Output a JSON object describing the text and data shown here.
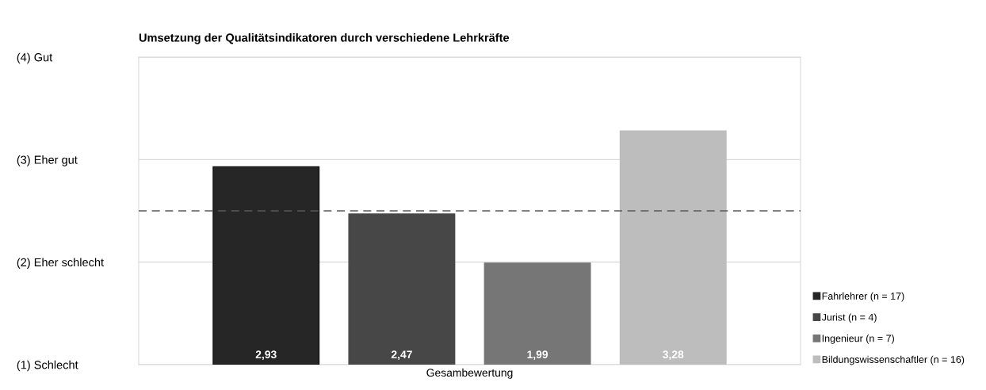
{
  "chart_data": {
    "type": "bar",
    "title": "Umsetzung der Qualitätsindikatoren durch verschiedene Lehrkräfte",
    "categories": [
      "Gesambewertung"
    ],
    "series": [
      {
        "name": "Fahrlehrer (n = 17)",
        "color": "#262626",
        "values": [
          2.93
        ],
        "value_labels": [
          "2,93"
        ]
      },
      {
        "name": "Jurist (n = 4)",
        "color": "#474747",
        "values": [
          2.47
        ],
        "value_labels": [
          "2,47"
        ]
      },
      {
        "name": "Ingenieur (n = 7)",
        "color": "#767676",
        "values": [
          1.99
        ],
        "value_labels": [
          "1,99"
        ]
      },
      {
        "name": "Bildungswissenschaftler (n = 16)",
        "color": "#bdbdbd",
        "values": [
          3.28
        ],
        "value_labels": [
          "3,28"
        ]
      }
    ],
    "ylim": [
      1,
      4
    ],
    "yticks": [
      {
        "value": 1,
        "label": "(1) Schlecht"
      },
      {
        "value": 2,
        "label": "(2) Eher schlecht"
      },
      {
        "value": 3,
        "label": "(3) Eher gut"
      },
      {
        "value": 4,
        "label": "(4) Gut"
      }
    ],
    "ref_lines": [
      {
        "axis": "y",
        "value": 2.5,
        "color": "#595959",
        "line_style": "dashed"
      }
    ],
    "grid": "y",
    "legend": "bottom right"
  }
}
